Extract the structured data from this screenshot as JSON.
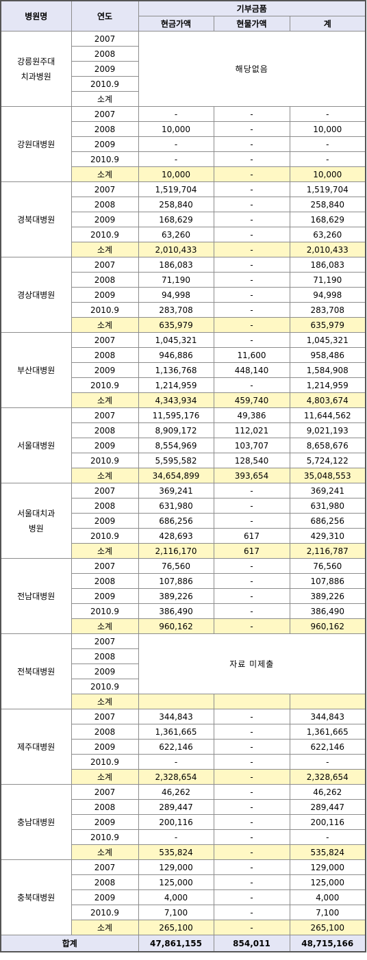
{
  "header": {
    "hospital": "병원명",
    "year": "연도",
    "donation": "기부금품",
    "cash": "현금가액",
    "goods": "현물가액",
    "total": "계"
  },
  "groups": [
    {
      "name": "강릉원주대\n치과병원",
      "note": "해당없음",
      "rows": [
        [
          "2007"
        ],
        [
          "2008"
        ],
        [
          "2009"
        ],
        [
          "2010.9"
        ],
        [
          "소계"
        ]
      ]
    },
    {
      "name": "강원대병원",
      "rows": [
        [
          "2007",
          "-",
          "-",
          "-"
        ],
        [
          "2008",
          "10,000",
          "-",
          "10,000"
        ],
        [
          "2009",
          "-",
          "-",
          "-"
        ],
        [
          "2010.9",
          "-",
          "-",
          "-"
        ],
        [
          "소계",
          "10,000",
          "-",
          "10,000"
        ]
      ]
    },
    {
      "name": "경북대병원",
      "rows": [
        [
          "2007",
          "1,519,704",
          "-",
          "1,519,704"
        ],
        [
          "2008",
          "258,840",
          "-",
          "258,840"
        ],
        [
          "2009",
          "168,629",
          "-",
          "168,629"
        ],
        [
          "2010.9",
          "63,260",
          "-",
          "63,260"
        ],
        [
          "소계",
          "2,010,433",
          "-",
          "2,010,433"
        ]
      ]
    },
    {
      "name": "경상대병원",
      "rows": [
        [
          "2007",
          "186,083",
          "-",
          "186,083"
        ],
        [
          "2008",
          "71,190",
          "-",
          "71,190"
        ],
        [
          "2009",
          "94,998",
          "-",
          "94,998"
        ],
        [
          "2010.9",
          "283,708",
          "-",
          "283,708"
        ],
        [
          "소계",
          "635,979",
          "-",
          "635,979"
        ]
      ]
    },
    {
      "name": "부산대병원",
      "rows": [
        [
          "2007",
          "1,045,321",
          "-",
          "1,045,321"
        ],
        [
          "2008",
          "946,886",
          "11,600",
          "958,486"
        ],
        [
          "2009",
          "1,136,768",
          "448,140",
          "1,584,908"
        ],
        [
          "2010.9",
          "1,214,959",
          "-",
          "1,214,959"
        ],
        [
          "소계",
          "4,343,934",
          "459,740",
          "4,803,674"
        ]
      ]
    },
    {
      "name": "서울대병원",
      "rows": [
        [
          "2007",
          "11,595,176",
          "49,386",
          "11,644,562"
        ],
        [
          "2008",
          "8,909,172",
          "112,021",
          "9,021,193"
        ],
        [
          "2009",
          "8,554,969",
          "103,707",
          "8,658,676"
        ],
        [
          "2010.9",
          "5,595,582",
          "128,540",
          "5,724,122"
        ],
        [
          "소계",
          "34,654,899",
          "393,654",
          "35,048,553"
        ]
      ]
    },
    {
      "name": "서울대치과\n병원",
      "rows": [
        [
          "2007",
          "369,241",
          "-",
          "369,241"
        ],
        [
          "2008",
          "631,980",
          "-",
          "631,980"
        ],
        [
          "2009",
          "686,256",
          "-",
          "686,256"
        ],
        [
          "2010.9",
          "428,693",
          "617",
          "429,310"
        ],
        [
          "소계",
          "2,116,170",
          "617",
          "2,116,787"
        ]
      ]
    },
    {
      "name": "전남대병원",
      "rows": [
        [
          "2007",
          "76,560",
          "-",
          "76,560"
        ],
        [
          "2008",
          "107,886",
          "-",
          "107,886"
        ],
        [
          "2009",
          "389,226",
          "-",
          "389,226"
        ],
        [
          "2010.9",
          "386,490",
          "-",
          "386,490"
        ],
        [
          "소계",
          "960,162",
          "-",
          "960,162"
        ]
      ]
    },
    {
      "name": "전북대병원",
      "note": "자료 미제출",
      "rows": [
        [
          "2007"
        ],
        [
          "2008"
        ],
        [
          "2009"
        ],
        [
          "2010.9"
        ],
        [
          "소계"
        ]
      ]
    },
    {
      "name": "제주대병원",
      "rows": [
        [
          "2007",
          "344,843",
          "-",
          "344,843"
        ],
        [
          "2008",
          "1,361,665",
          "-",
          "1,361,665"
        ],
        [
          "2009",
          "622,146",
          "-",
          "622,146"
        ],
        [
          "2010.9",
          "-",
          "-",
          "-"
        ],
        [
          "소계",
          "2,328,654",
          "-",
          "2,328,654"
        ]
      ]
    },
    {
      "name": "충남대병원",
      "rows": [
        [
          "2007",
          "46,262",
          "-",
          "46,262"
        ],
        [
          "2008",
          "289,447",
          "-",
          "289,447"
        ],
        [
          "2009",
          "200,116",
          "-",
          "200,116"
        ],
        [
          "2010.9",
          "-",
          "-",
          "-"
        ],
        [
          "소계",
          "535,824",
          "-",
          "535,824"
        ]
      ]
    },
    {
      "name": "충북대병원",
      "rows": [
        [
          "2007",
          "129,000",
          "-",
          "129,000"
        ],
        [
          "2008",
          "125,000",
          "-",
          "125,000"
        ],
        [
          "2009",
          "4,000",
          "-",
          "4,000"
        ],
        [
          "2010.9",
          "7,100",
          "-",
          "7,100"
        ],
        [
          "소계",
          "265,100",
          "-",
          "265,100"
        ]
      ]
    }
  ],
  "total": {
    "label": "합계",
    "values": [
      "47,861,155",
      "854,011",
      "48,715,166"
    ]
  }
}
